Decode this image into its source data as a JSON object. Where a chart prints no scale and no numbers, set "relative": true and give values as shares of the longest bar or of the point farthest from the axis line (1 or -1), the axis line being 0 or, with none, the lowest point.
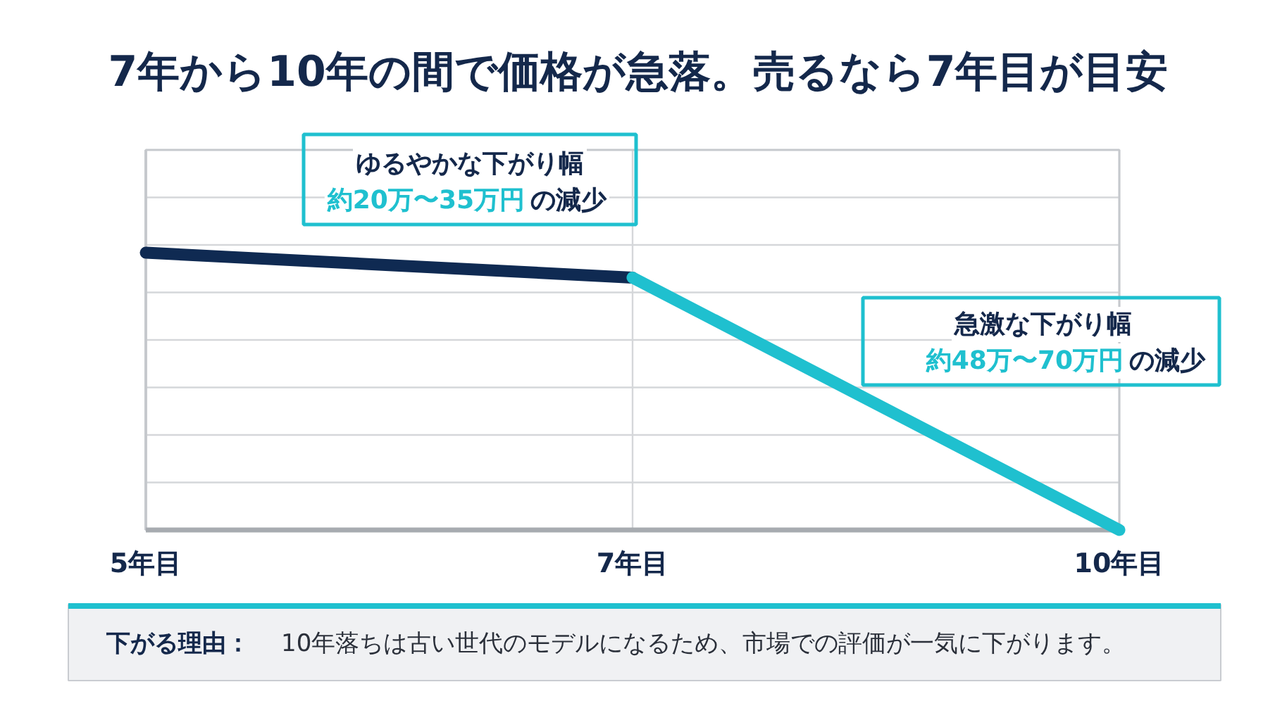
{
  "chart_data": {
    "type": "line",
    "title": "7年から10年の間で価格が急落。売るなら7年目が目安",
    "categories": [
      "5年目",
      "7年目",
      "10年目"
    ],
    "relative": true,
    "series": [
      {
        "color": "#0f2a52",
        "values": [
          1,
          0.91,
          null
        ]
      },
      {
        "color": "#1fc0cf",
        "values": [
          null,
          0.91,
          0
        ]
      }
    ],
    "grid": true,
    "annotations": [
      "ゆるやかな下がり幅",
      "約20万〜35万円",
      "の減少",
      "急激な下がり幅",
      "約48万〜70万円",
      "の減少",
      "下がる理由：",
      "10年落ちは古い世代のモデルになるため、市場での評価が一気に下がります。"
    ]
  }
}
